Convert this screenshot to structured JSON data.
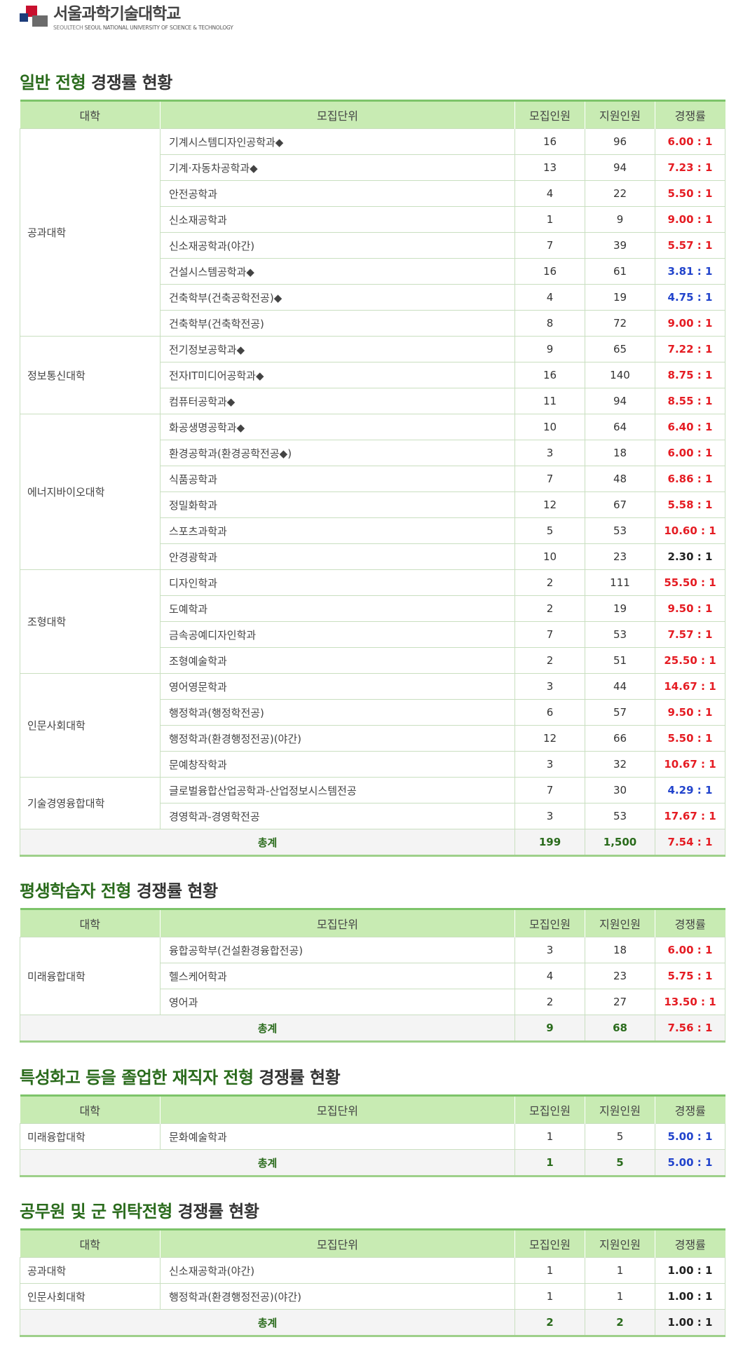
{
  "logo": {
    "name_kr": "서울과학기술대학교",
    "abbr": "SEOULTECH",
    "name_en": "SEOUL NATIONAL UNIVERSITY OF SCIENCE & TECHNOLOGY"
  },
  "headers": {
    "college": "대학",
    "unit": "모집단위",
    "quota": "모집인원",
    "applicants": "지원인원",
    "ratio": "경쟁률"
  },
  "sections": [
    {
      "title_main": "일반 전형",
      "title_rest": "경쟁률 현황",
      "groups": [
        {
          "college": "공과대학",
          "rows": [
            {
              "unit": "기계시스템디자인공학과◆",
              "quota": "16",
              "applicants": "96",
              "ratio": "6.00 : 1",
              "color": "red"
            },
            {
              "unit": "기계·자동차공학과◆",
              "quota": "13",
              "applicants": "94",
              "ratio": "7.23 : 1",
              "color": "red"
            },
            {
              "unit": "안전공학과",
              "quota": "4",
              "applicants": "22",
              "ratio": "5.50 : 1",
              "color": "red"
            },
            {
              "unit": "신소재공학과",
              "quota": "1",
              "applicants": "9",
              "ratio": "9.00 : 1",
              "color": "red"
            },
            {
              "unit": "신소재공학과(야간)",
              "quota": "7",
              "applicants": "39",
              "ratio": "5.57 : 1",
              "color": "red"
            },
            {
              "unit": "건설시스템공학과◆",
              "quota": "16",
              "applicants": "61",
              "ratio": "3.81 : 1",
              "color": "blue"
            },
            {
              "unit": "건축학부(건축공학전공)◆",
              "quota": "4",
              "applicants": "19",
              "ratio": "4.75 : 1",
              "color": "blue"
            },
            {
              "unit": "건축학부(건축학전공)",
              "quota": "8",
              "applicants": "72",
              "ratio": "9.00 : 1",
              "color": "red"
            }
          ]
        },
        {
          "college": "정보통신대학",
          "rows": [
            {
              "unit": "전기정보공학과◆",
              "quota": "9",
              "applicants": "65",
              "ratio": "7.22 : 1",
              "color": "red"
            },
            {
              "unit": "전자IT미디어공학과◆",
              "quota": "16",
              "applicants": "140",
              "ratio": "8.75 : 1",
              "color": "red"
            },
            {
              "unit": "컴퓨터공학과◆",
              "quota": "11",
              "applicants": "94",
              "ratio": "8.55 : 1",
              "color": "red"
            }
          ]
        },
        {
          "college": "에너지바이오대학",
          "rows": [
            {
              "unit": "화공생명공학과◆",
              "quota": "10",
              "applicants": "64",
              "ratio": "6.40 : 1",
              "color": "red"
            },
            {
              "unit": "환경공학과(환경공학전공◆)",
              "quota": "3",
              "applicants": "18",
              "ratio": "6.00 : 1",
              "color": "red"
            },
            {
              "unit": "식품공학과",
              "quota": "7",
              "applicants": "48",
              "ratio": "6.86 : 1",
              "color": "red"
            },
            {
              "unit": "정밀화학과",
              "quota": "12",
              "applicants": "67",
              "ratio": "5.58 : 1",
              "color": "red"
            },
            {
              "unit": "스포츠과학과",
              "quota": "5",
              "applicants": "53",
              "ratio": "10.60 : 1",
              "color": "red"
            },
            {
              "unit": "안경광학과",
              "quota": "10",
              "applicants": "23",
              "ratio": "2.30 : 1",
              "color": "black"
            }
          ]
        },
        {
          "college": "조형대학",
          "rows": [
            {
              "unit": "디자인학과",
              "quota": "2",
              "applicants": "111",
              "ratio": "55.50 : 1",
              "color": "red"
            },
            {
              "unit": "도예학과",
              "quota": "2",
              "applicants": "19",
              "ratio": "9.50 : 1",
              "color": "red"
            },
            {
              "unit": "금속공예디자인학과",
              "quota": "7",
              "applicants": "53",
              "ratio": "7.57 : 1",
              "color": "red"
            },
            {
              "unit": "조형예술학과",
              "quota": "2",
              "applicants": "51",
              "ratio": "25.50 : 1",
              "color": "red"
            }
          ]
        },
        {
          "college": "인문사회대학",
          "rows": [
            {
              "unit": "영어영문학과",
              "quota": "3",
              "applicants": "44",
              "ratio": "14.67 : 1",
              "color": "red"
            },
            {
              "unit": "행정학과(행정학전공)",
              "quota": "6",
              "applicants": "57",
              "ratio": "9.50 : 1",
              "color": "red"
            },
            {
              "unit": "행정학과(환경행정전공)(야간)",
              "quota": "12",
              "applicants": "66",
              "ratio": "5.50 : 1",
              "color": "red"
            },
            {
              "unit": "문예창작학과",
              "quota": "3",
              "applicants": "32",
              "ratio": "10.67 : 1",
              "color": "red"
            }
          ]
        },
        {
          "college": "기술경영융합대학",
          "rows": [
            {
              "unit": "글로벌융합산업공학과-산업정보시스템전공",
              "quota": "7",
              "applicants": "30",
              "ratio": "4.29 : 1",
              "color": "blue"
            },
            {
              "unit": "경영학과-경영학전공",
              "quota": "3",
              "applicants": "53",
              "ratio": "17.67 : 1",
              "color": "red"
            }
          ]
        }
      ],
      "total": {
        "label": "총계",
        "quota": "199",
        "applicants": "1,500",
        "ratio": "7.54 : 1",
        "color": "red"
      }
    },
    {
      "title_main": "평생학습자 전형",
      "title_rest": "경쟁률 현황",
      "groups": [
        {
          "college": "미래융합대학",
          "rows": [
            {
              "unit": "융합공학부(건설환경융합전공)",
              "quota": "3",
              "applicants": "18",
              "ratio": "6.00 : 1",
              "color": "red"
            },
            {
              "unit": "헬스케어학과",
              "quota": "4",
              "applicants": "23",
              "ratio": "5.75 : 1",
              "color": "red"
            },
            {
              "unit": "영어과",
              "quota": "2",
              "applicants": "27",
              "ratio": "13.50 : 1",
              "color": "red"
            }
          ]
        }
      ],
      "total": {
        "label": "총계",
        "quota": "9",
        "applicants": "68",
        "ratio": "7.56 : 1",
        "color": "red"
      }
    },
    {
      "title_main": "특성화고 등을 졸업한 재직자 전형",
      "title_rest": "경쟁률 현황",
      "groups": [
        {
          "college": "미래융합대학",
          "rows": [
            {
              "unit": "문화예술학과",
              "quota": "1",
              "applicants": "5",
              "ratio": "5.00 : 1",
              "color": "blue"
            }
          ]
        }
      ],
      "total": {
        "label": "총계",
        "quota": "1",
        "applicants": "5",
        "ratio": "5.00 : 1",
        "color": "blue"
      }
    },
    {
      "title_main": "공무원 및 군 위탁전형",
      "title_rest": "경쟁률 현황",
      "groups": [
        {
          "college": "공과대학",
          "rows": [
            {
              "unit": "신소재공학과(야간)",
              "quota": "1",
              "applicants": "1",
              "ratio": "1.00 : 1",
              "color": "black"
            }
          ]
        },
        {
          "college": "인문사회대학",
          "rows": [
            {
              "unit": "행정학과(환경행정전공)(야간)",
              "quota": "1",
              "applicants": "1",
              "ratio": "1.00 : 1",
              "color": "black"
            }
          ]
        }
      ],
      "total": {
        "label": "총계",
        "quota": "2",
        "applicants": "2",
        "ratio": "1.00 : 1",
        "color": "black"
      }
    }
  ]
}
